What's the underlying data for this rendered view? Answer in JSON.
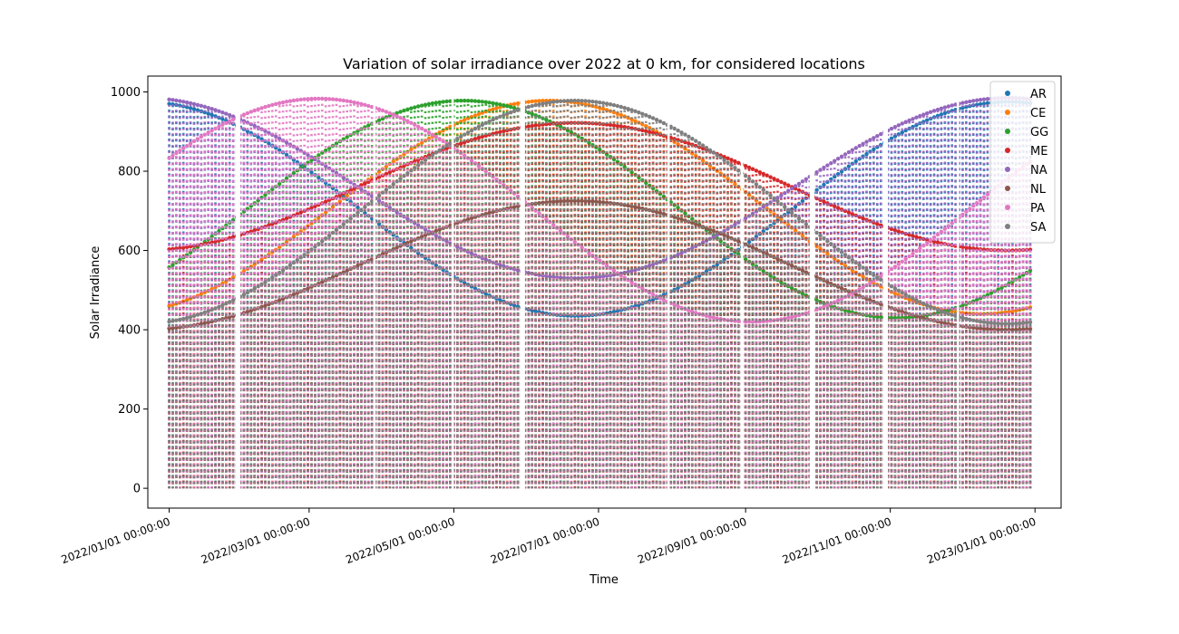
{
  "chart_data": {
    "type": "scatter",
    "title": "Variation of solar irradiance over 2022 at 0 km, for considered locations",
    "xlabel": "Time",
    "ylabel": "Solar Irradiance",
    "xlim": [
      "2021-12-23",
      "2023-01-12"
    ],
    "ylim": [
      -50,
      1040
    ],
    "xticks": [
      {
        "date": "2022-01-01",
        "label": "2022/01/01 00:00:00"
      },
      {
        "date": "2022-03-01",
        "label": "2022/03/01 00:00:00"
      },
      {
        "date": "2022-05-01",
        "label": "2022/05/01 00:00:00"
      },
      {
        "date": "2022-07-01",
        "label": "2022/07/01 00:00:00"
      },
      {
        "date": "2022-09-01",
        "label": "2022/09/01 00:00:00"
      },
      {
        "date": "2022-11-01",
        "label": "2022/11/01 00:00:00"
      },
      {
        "date": "2023-01-01",
        "label": "2023/01/01 00:00:00"
      }
    ],
    "yticks": [
      0,
      200,
      400,
      600,
      800,
      1000
    ],
    "legend_position": "top-right",
    "gaps": [
      [
        "2022-01-29",
        "2022-01-31"
      ],
      [
        "2022-03-28",
        "2022-03-29"
      ],
      [
        "2022-04-30",
        "2022-05-01"
      ],
      [
        "2022-05-29",
        "2022-05-31"
      ],
      [
        "2022-07-30",
        "2022-07-31"
      ],
      [
        "2022-08-30",
        "2022-08-31"
      ],
      [
        "2022-09-28",
        "2022-09-30"
      ],
      [
        "2022-10-29",
        "2022-10-31"
      ],
      [
        "2022-11-29",
        "2022-11-30"
      ]
    ],
    "series": [
      {
        "name": "AR",
        "color": "#1f77b4",
        "peak_date": "2022-12-21",
        "max_range": [
          435,
          975
        ]
      },
      {
        "name": "CE",
        "color": "#ff7f0e",
        "peak_date": "2022-06-10",
        "max_range": [
          440,
          978
        ]
      },
      {
        "name": "GG",
        "color": "#2ca02c",
        "peak_date": "2022-05-05",
        "max_range": [
          430,
          978
        ]
      },
      {
        "name": "ME",
        "color": "#d62728",
        "peak_date": "2022-06-21",
        "max_range": [
          600,
          922
        ]
      },
      {
        "name": "NA",
        "color": "#9467bd",
        "peak_date": "2022-12-21",
        "max_range": [
          530,
          985
        ]
      },
      {
        "name": "NL",
        "color": "#8c564b",
        "peak_date": "2022-06-21",
        "max_range": [
          400,
          725
        ]
      },
      {
        "name": "PA",
        "color": "#e377c2",
        "peak_date": "2022-03-05",
        "max_range": [
          420,
          983
        ]
      },
      {
        "name": "SA",
        "color": "#7f7f7f",
        "peak_date": "2022-06-21",
        "max_range": [
          415,
          978
        ]
      }
    ]
  }
}
